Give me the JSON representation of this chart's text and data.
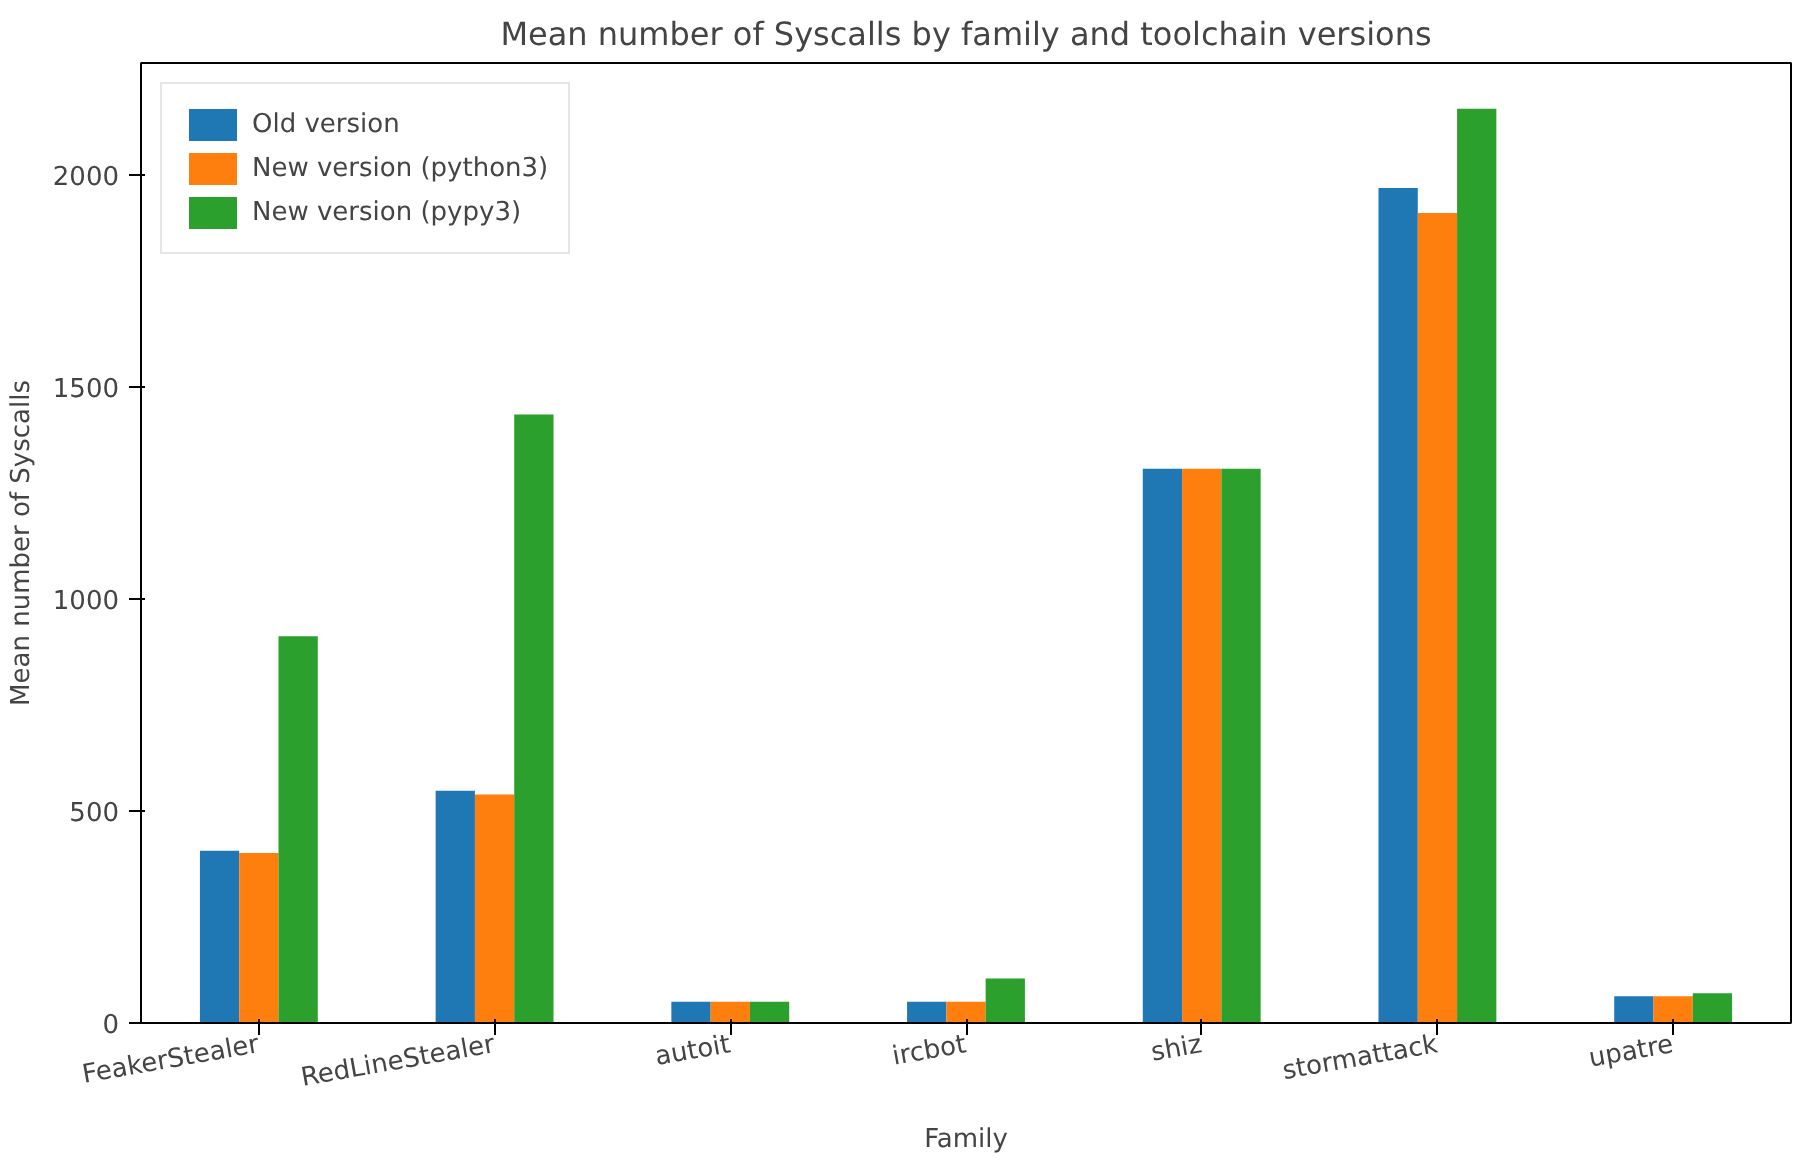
{
  "chart_data": {
    "type": "bar",
    "title": "Mean number of Syscalls by family and toolchain versions",
    "xlabel": "Family",
    "ylabel": "Mean number of Syscalls",
    "categories": [
      "FeakerStealer",
      "RedLineStealer",
      "autoit",
      "ircbot",
      "shiz",
      "stormattack",
      "upatre"
    ],
    "series": [
      {
        "name": "Old version",
        "color": "#1f77b4",
        "values": [
          406,
          548,
          50,
          50,
          1307,
          1969,
          63
        ]
      },
      {
        "name": "New version (python3)",
        "color": "#ff7f0e",
        "values": [
          401,
          539,
          50,
          50,
          1307,
          1910,
          63
        ]
      },
      {
        "name": "New version (pypy3)",
        "color": "#2ca02c",
        "values": [
          912,
          1435,
          50,
          105,
          1307,
          2156,
          70
        ]
      }
    ],
    "ylim": [
      0,
      2264
    ],
    "yticks": [
      0,
      500,
      1000,
      1500,
      2000
    ],
    "grid": false,
    "legend": "top left"
  }
}
